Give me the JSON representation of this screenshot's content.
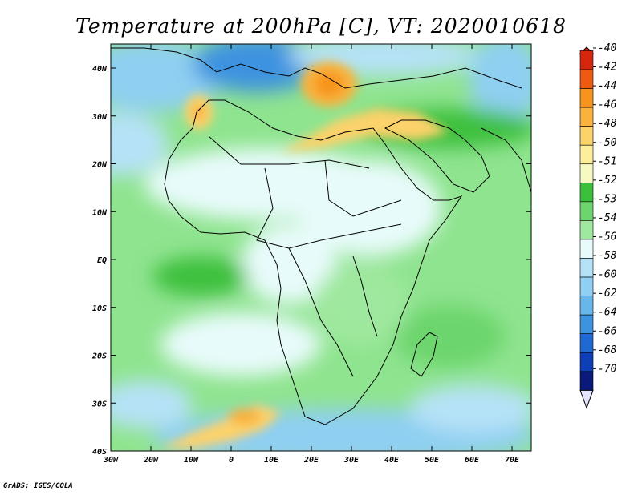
{
  "title": "Temperature at 200hPa [C], VT: 2020010618",
  "credit": "GrADS: IGES/COLA",
  "map": {
    "lon_ticks": [
      "30W",
      "20W",
      "10W",
      "0",
      "10E",
      "20E",
      "30E",
      "40E",
      "50E",
      "60E",
      "70E"
    ],
    "lat_ticks": [
      "40N",
      "30N",
      "20N",
      "10N",
      "EQ",
      "10S",
      "20S",
      "30S",
      "40S"
    ]
  },
  "colorbar": {
    "labels": [
      "-40",
      "-42",
      "-44",
      "-46",
      "-48",
      "-50",
      "-51",
      "-52",
      "-53",
      "-54",
      "-56",
      "-58",
      "-60",
      "-62",
      "-64",
      "-66",
      "-68",
      "-70"
    ],
    "colors": [
      "#d7260d",
      "#ef5a12",
      "#f7941d",
      "#f9b23c",
      "#fcd26a",
      "#fdee9c",
      "#f6f9c2",
      "#3cc03c",
      "#6dd56d",
      "#9fe89f",
      "#e8fbfb",
      "#b6e2f7",
      "#8fcff1",
      "#67b7ea",
      "#3e93e0",
      "#1f6ad2",
      "#0f3fb7",
      "#0a1a7a"
    ],
    "top_cap": "#d7260d",
    "bottom_cap": "#e4e4ff"
  }
}
